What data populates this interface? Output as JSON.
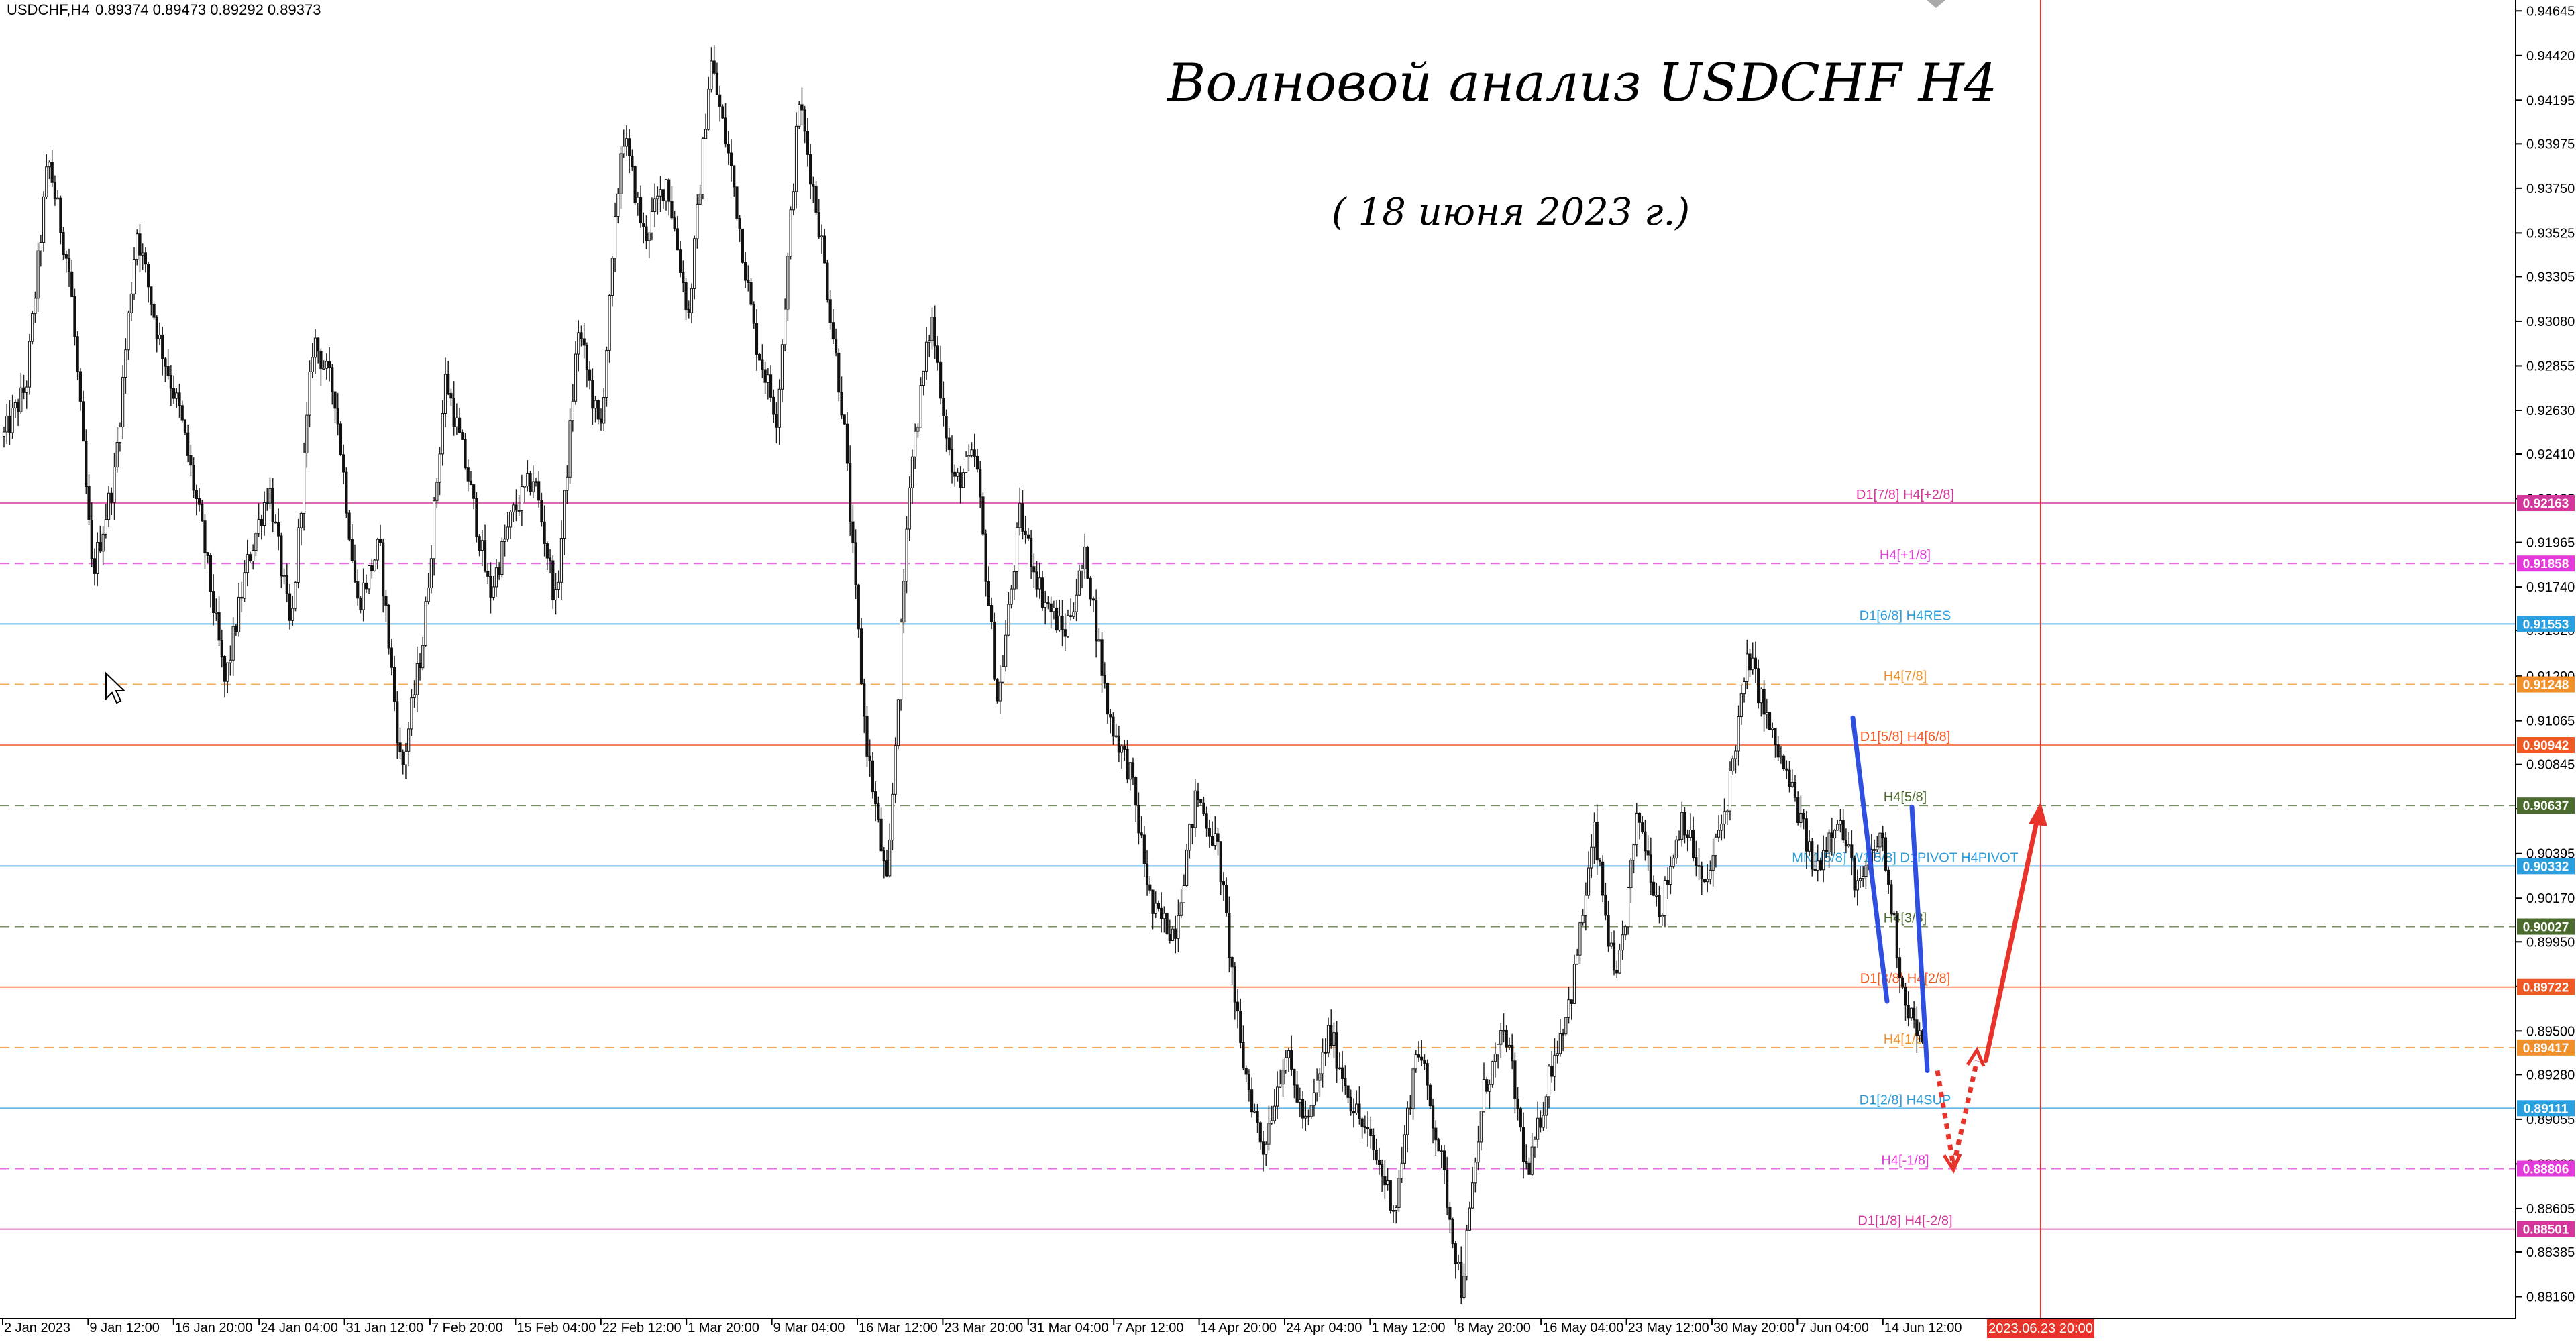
{
  "header": {
    "symbol": "USDCHF,H4",
    "ohlc": "0.89374 0.89473 0.89292 0.89373"
  },
  "annotations": {
    "title": "Волновой анализ USDCHF H4",
    "subtitle": "( 18 июня 2023 г.)"
  },
  "price_axis": {
    "min": 0.8805,
    "max": 0.947,
    "ticks": [
      "0.94645",
      "0.94420",
      "0.94195",
      "0.93975",
      "0.93750",
      "0.93525",
      "0.93305",
      "0.93080",
      "0.92855",
      "0.92630",
      "0.92410",
      "0.92185",
      "0.91965",
      "0.91740",
      "0.91520",
      "0.91290",
      "0.91065",
      "0.90845",
      "0.90620",
      "0.90395",
      "0.90170",
      "0.89950",
      "0.89725",
      "0.89500",
      "0.89280",
      "0.89055",
      "0.88830",
      "0.88605",
      "0.88385",
      "0.88160"
    ]
  },
  "time_axis": {
    "labels": [
      "2 Jan 2023",
      "9 Jan 12:00",
      "16 Jan 20:00",
      "24 Jan 04:00",
      "31 Jan 12:00",
      "7 Feb 20:00",
      "15 Feb 04:00",
      "22 Feb 12:00",
      "1 Mar 20:00",
      "9 Mar 04:00",
      "16 Mar 12:00",
      "23 Mar 20:00",
      "31 Mar 04:00",
      "7 Apr 12:00",
      "14 Apr 20:00",
      "24 Apr 04:00",
      "1 May 12:00",
      "8 May 20:00",
      "16 May 04:00",
      "23 May 12:00",
      "30 May 20:00",
      "7 Jun 04:00",
      "14 Jun 12:00"
    ],
    "highlight_label": "2023.06.23 20:00",
    "highlight_color": "#e8332a"
  },
  "levels": [
    {
      "price": 0.92163,
      "tag": "0.92163",
      "label": "D1[7/8] H4[+2/8]",
      "color": "#d4379b",
      "style": "solid"
    },
    {
      "price": 0.91858,
      "tag": "0.91858",
      "label": "H4[+1/8]",
      "color": "#e33bd9",
      "style": "dashed"
    },
    {
      "price": 0.91553,
      "tag": "0.91553",
      "label": "D1[6/8] H4RES",
      "color": "#2a9fe0",
      "style": "solid"
    },
    {
      "price": 0.91248,
      "tag": "0.91248",
      "label": "H4[7/8]",
      "color": "#f0902a",
      "style": "dashed"
    },
    {
      "price": 0.90942,
      "tag": "0.90942",
      "label": "D1[5/8] H4[6/8]",
      "color": "#ef5a24",
      "style": "solid"
    },
    {
      "price": 0.90637,
      "tag": "0.90637",
      "label": "H4[5/8]",
      "color": "#4b6a2e",
      "style": "dashed"
    },
    {
      "price": 0.90332,
      "tag": "0.90332",
      "label": "MN1[5/8] W1[5/8] D1PIVOT H4PIVOT",
      "color": "#2a9fe0",
      "style": "solid"
    },
    {
      "price": 0.90027,
      "tag": "0.90027",
      "label": "H4[3/8]",
      "color": "#4b6a2e",
      "style": "dashed"
    },
    {
      "price": 0.89722,
      "tag": "0.89722",
      "label": "D1[3/8] H4[2/8]",
      "color": "#ef5a24",
      "style": "solid"
    },
    {
      "price": 0.89417,
      "tag": "0.89417",
      "label": "H4[1/8]",
      "color": "#f0902a",
      "style": "dashed"
    },
    {
      "price": 0.89111,
      "tag": "0.89111",
      "label": "D1[2/8] H4SUP",
      "color": "#2a9fe0",
      "style": "solid"
    },
    {
      "price": 0.88806,
      "tag": "0.88806",
      "label": "H4[-1/8]",
      "color": "#e33bd9",
      "style": "dashed"
    },
    {
      "price": 0.88501,
      "tag": "0.88501",
      "label": "D1[1/8] H4[-2/8]",
      "color": "#d4379b",
      "style": "solid"
    }
  ],
  "chart_data": {
    "type": "candlestick",
    "price_path": [
      0.925,
      0.9275,
      0.939,
      0.933,
      0.918,
      0.923,
      0.9355,
      0.93,
      0.926,
      0.92,
      0.9125,
      0.9185,
      0.9225,
      0.915,
      0.93,
      0.927,
      0.9165,
      0.9195,
      0.908,
      0.915,
      0.928,
      0.923,
      0.917,
      0.921,
      0.923,
      0.9165,
      0.9305,
      0.925,
      0.9405,
      0.935,
      0.938,
      0.931,
      0.944,
      0.938,
      0.93,
      0.926,
      0.942,
      0.935,
      0.926,
      0.91,
      0.902,
      0.923,
      0.931,
      0.9225,
      0.924,
      0.9115,
      0.921,
      0.917,
      0.915,
      0.919,
      0.911,
      0.908,
      0.901,
      0.9,
      0.907,
      0.904,
      0.894,
      0.889,
      0.894,
      0.89,
      0.895,
      0.8915,
      0.889,
      0.886,
      0.8945,
      0.889,
      0.882,
      0.892,
      0.895,
      0.8875,
      0.893,
      0.897,
      0.905,
      0.897,
      0.906,
      0.901,
      0.906,
      0.902,
      0.9065,
      0.914,
      0.91,
      0.907,
      0.903,
      0.906,
      0.902,
      0.905,
      0.897,
      0.8937
    ],
    "blue_lines": [
      [
        [
          0.9108,
          0.8965
        ],
        [
          0.9063,
          0.893
        ]
      ]
    ],
    "forecast": {
      "path": [
        0.893,
        0.8882,
        0.8935
      ],
      "target": 0.9062,
      "color": "#e8332a"
    },
    "current_price": 0.89373,
    "vertical_marker_color": "#e8332a"
  }
}
